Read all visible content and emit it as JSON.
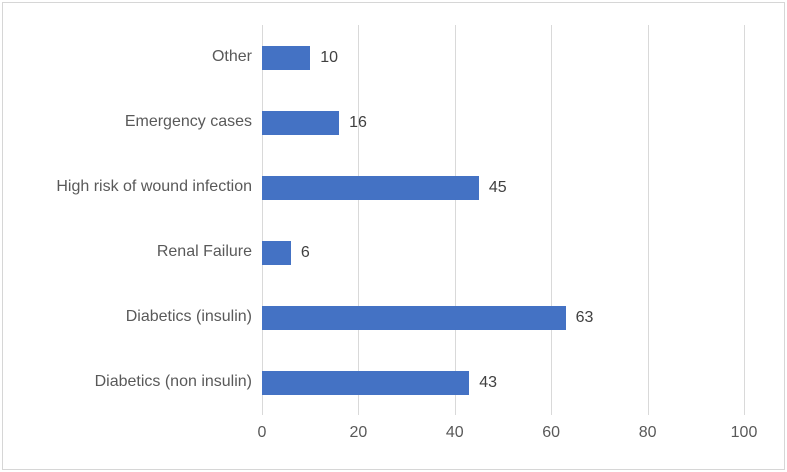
{
  "chart_data": {
    "type": "bar",
    "orientation": "horizontal",
    "title": "",
    "xlabel": "",
    "ylabel": "",
    "categories": [
      "Other",
      "Emergency cases",
      "High risk of wound infection",
      "Renal Failure",
      "Diabetics (insulin)",
      "Diabetics (non insulin)"
    ],
    "values": [
      10,
      16,
      45,
      6,
      63,
      43
    ],
    "data_labels": [
      "10",
      "16",
      "45",
      "6",
      "63",
      "43"
    ],
    "xlim": [
      0,
      100
    ],
    "x_ticks": [
      0,
      20,
      40,
      60,
      80,
      100
    ],
    "grid": "vertical-on",
    "legend": "none",
    "colors": {
      "bar_fill": "#4472C4",
      "gridline": "#d9d9d9",
      "axis_text": "#595959",
      "value_text": "#404040",
      "frame_border": "#d6d6d6",
      "background": "#ffffff"
    }
  }
}
